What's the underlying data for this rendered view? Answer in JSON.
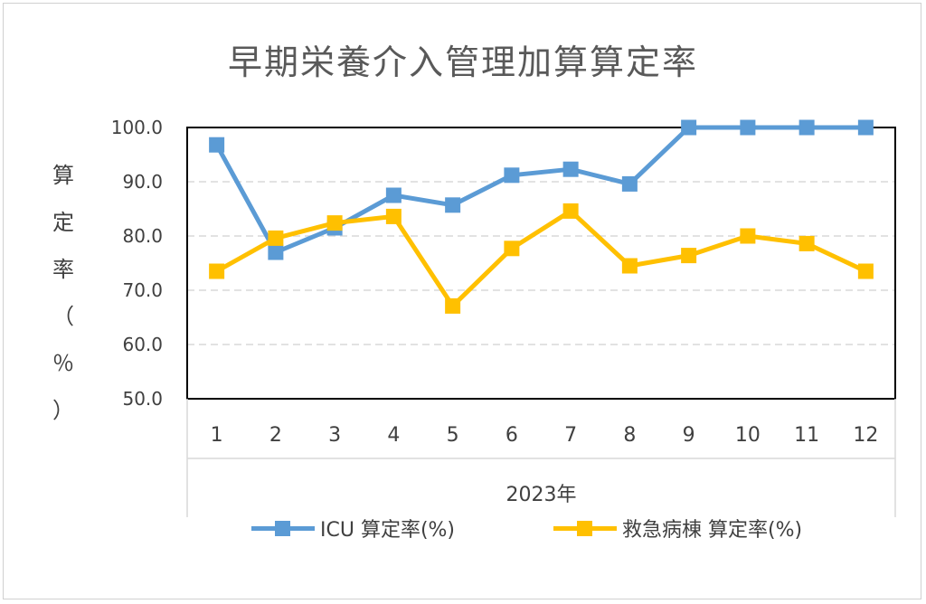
{
  "chart_data": {
    "type": "line",
    "title": "早期栄養介入管理加算算定率",
    "ylabel": "算定率（％）",
    "xlabel": "2023年",
    "categories": [
      "1",
      "2",
      "3",
      "4",
      "5",
      "6",
      "7",
      "8",
      "9",
      "10",
      "11",
      "12"
    ],
    "ylim": [
      50,
      100
    ],
    "yticks": [
      "100.0",
      "90.0",
      "80.0",
      "70.0",
      "60.0",
      "50.0"
    ],
    "grid": true,
    "legend_position": "bottom",
    "series": [
      {
        "name": "ICU 算定率(%)",
        "color": "#5b9bd5",
        "values": [
          96.8,
          77.0,
          81.5,
          87.5,
          85.7,
          91.2,
          92.3,
          89.6,
          100.0,
          100.0,
          100.0,
          100.0
        ]
      },
      {
        "name": "救急病棟 算定率(%)",
        "color": "#ffc000",
        "values": [
          73.5,
          79.6,
          82.4,
          83.6,
          67.1,
          77.7,
          84.6,
          74.5,
          76.4,
          80.0,
          78.6,
          73.5
        ]
      }
    ]
  }
}
